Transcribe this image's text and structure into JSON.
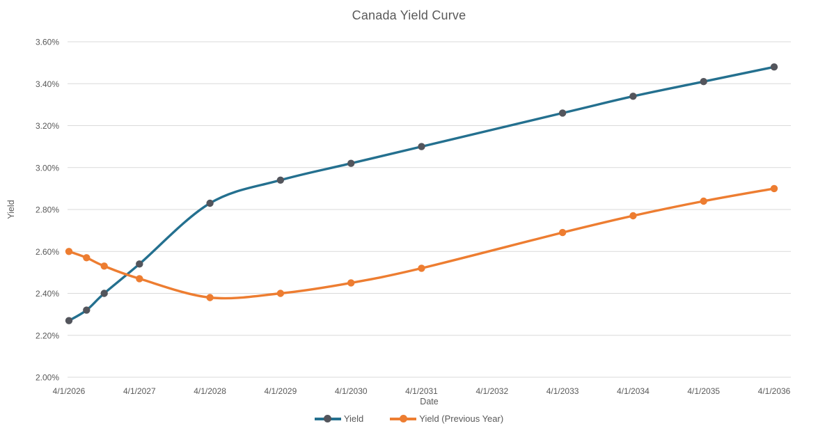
{
  "chart_data": {
    "type": "line",
    "title": "Canada Yield Curve",
    "xlabel": "Date",
    "ylabel": "Yield",
    "x": [
      "4/1/2026",
      "7/1/2026",
      "10/1/2026",
      "4/1/2027",
      "4/1/2028",
      "4/1/2029",
      "4/1/2030",
      "4/1/2031",
      "4/1/2033",
      "4/1/2034",
      "4/1/2035",
      "4/1/2036"
    ],
    "x_years": [
      0,
      0.25,
      0.5,
      1,
      2,
      3,
      4,
      5,
      7,
      8,
      9,
      10
    ],
    "series": [
      {
        "name": "Yield",
        "line_color": "#24708F",
        "marker_color": "#53555C",
        "values": [
          2.27,
          2.32,
          2.4,
          2.54,
          2.83,
          2.94,
          3.02,
          3.1,
          3.26,
          3.34,
          3.41,
          3.48
        ]
      },
      {
        "name": "Yield (Previous Year)",
        "line_color": "#ED7D31",
        "marker_color": "#ED7D31",
        "values": [
          2.6,
          2.57,
          2.53,
          2.47,
          2.38,
          2.4,
          2.45,
          2.52,
          2.69,
          2.77,
          2.84,
          2.9
        ]
      }
    ],
    "ylim": [
      2.0,
      3.6
    ],
    "y_tick_labels": [
      "3.60%",
      "3.40%",
      "3.20%",
      "3.00%",
      "2.80%",
      "2.60%",
      "2.40%",
      "2.20%",
      "2.00%"
    ],
    "x_tick_labels": [
      "4/1/2026",
      "4/1/2027",
      "4/1/2028",
      "4/1/2029",
      "4/1/2030",
      "4/1/2031",
      "4/1/2032",
      "4/1/2033",
      "4/1/2034",
      "4/1/2035",
      "4/1/2036"
    ],
    "x_tick_years": [
      0,
      1,
      2,
      3,
      4,
      5,
      6,
      7,
      8,
      9,
      10
    ],
    "grid": "horizontal",
    "gridline_color": "#D9D9D9",
    "label_color": "#595959",
    "legend_position": "bottom",
    "line_style": "smooth"
  }
}
